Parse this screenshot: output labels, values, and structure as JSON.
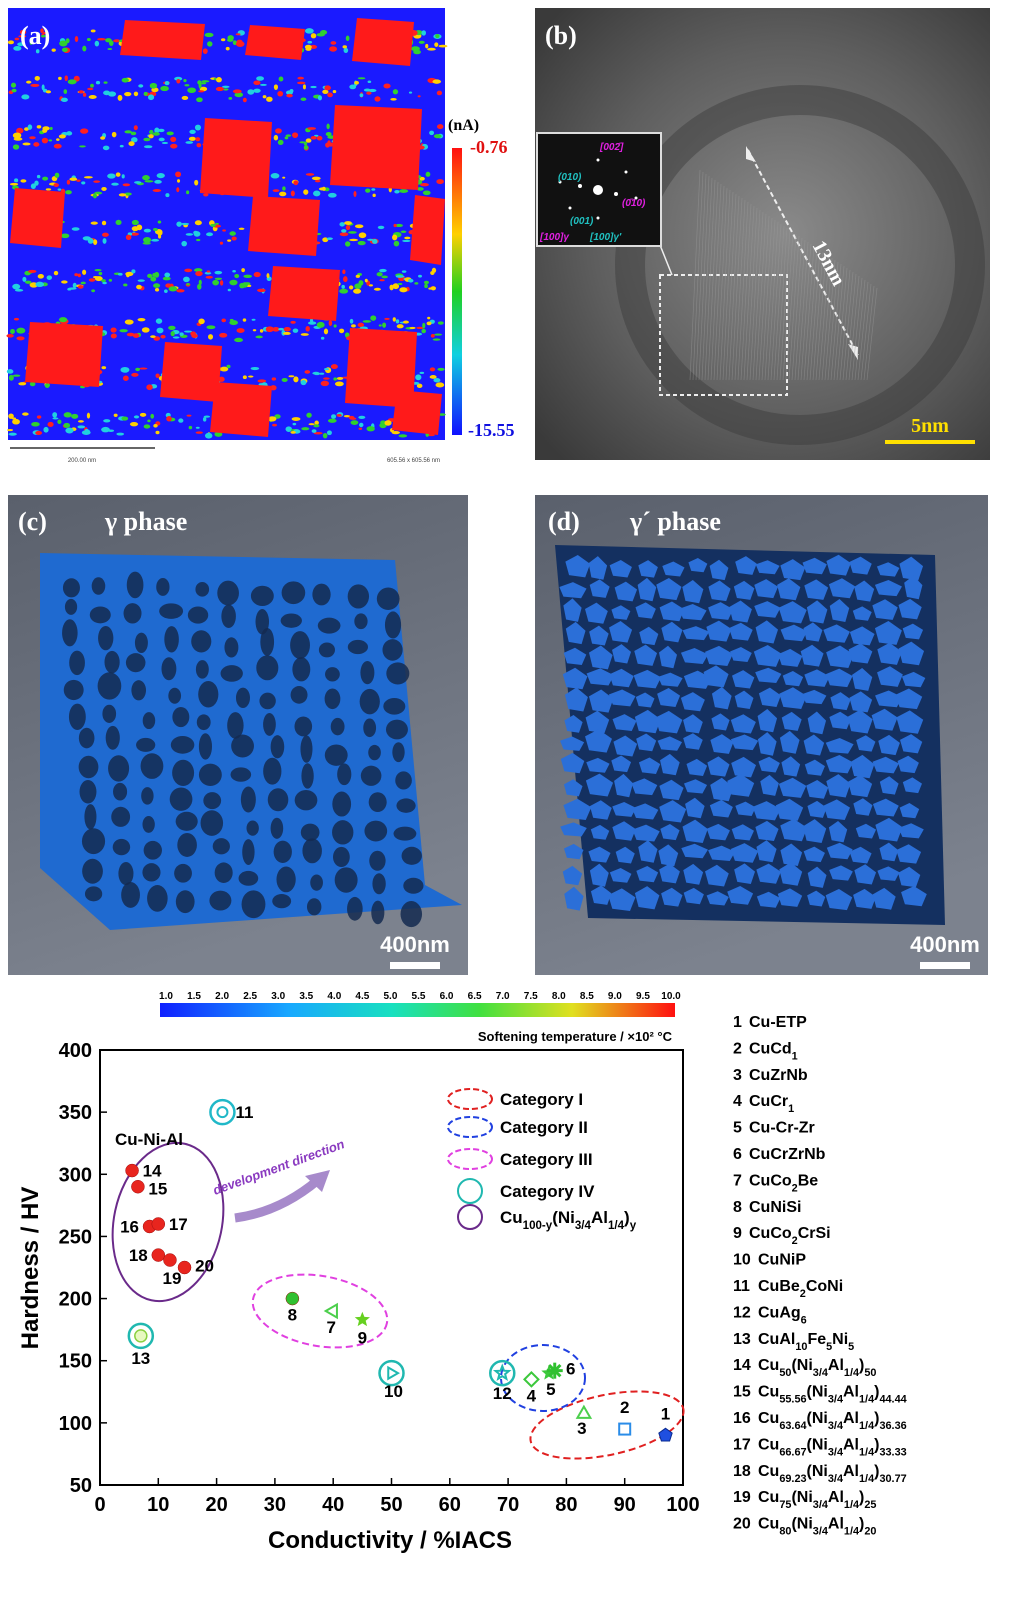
{
  "panel_a": {
    "label": "(a)",
    "unit": "(nA)",
    "colorbar_max": -0.76,
    "colorbar_min": -15.55,
    "scale_text": "200.00 nm",
    "size_text": "605.56 x 605.56 nm"
  },
  "panel_b": {
    "label": "(b)",
    "length": "13nm",
    "scale": "5nm",
    "inset_labels": [
      "[002̄]",
      "(010)",
      "(0̄10)",
      "(001)",
      "[100]γ",
      "[100]γ'"
    ]
  },
  "panel_c": {
    "label": "(c)",
    "phase": "γ phase",
    "scale": "400nm"
  },
  "panel_d": {
    "label": "(d)",
    "phase": "γ´ phase",
    "scale": "400nm"
  },
  "chart_data": {
    "type": "scatter",
    "x_label": "Conductivity / %IACS",
    "y_label": "Hardness / HV",
    "xlim": [
      0,
      100
    ],
    "ylim": [
      50,
      400
    ],
    "xticks": [
      0,
      10,
      20,
      30,
      40,
      50,
      60,
      70,
      80,
      90,
      100
    ],
    "yticks": [
      50,
      100,
      150,
      200,
      250,
      300,
      350,
      400
    ],
    "grid": false,
    "colorbar": {
      "title": "Softening temperature / ×10² °C",
      "labels": [
        "1.0",
        "1.5",
        "2.0",
        "2.5",
        "3.0",
        "3.5",
        "4.0",
        "4.5",
        "5.0",
        "5.5",
        "6.0",
        "6.5",
        "7.0",
        "7.5",
        "8.0",
        "8.5",
        "9.0",
        "9.5",
        "10.0"
      ]
    },
    "points": [
      {
        "label": "1",
        "x": 97,
        "y": 90,
        "marker": "pentagon",
        "color": "#1f4fe0"
      },
      {
        "label": "2",
        "x": 90,
        "y": 95,
        "marker": "square",
        "color": "#2a8ce8"
      },
      {
        "label": "3",
        "x": 83,
        "y": 107,
        "marker": "triangle",
        "color": "#4ccf4c"
      },
      {
        "label": "4",
        "x": 74,
        "y": 135,
        "marker": "diamond",
        "color": "#3cc83c"
      },
      {
        "label": "5",
        "x": 77,
        "y": 140,
        "marker": "star",
        "color": "#3cc83c"
      },
      {
        "label": "6",
        "x": 78,
        "y": 142,
        "marker": "asterisk",
        "color": "#30c030"
      },
      {
        "label": "7",
        "x": 40,
        "y": 190,
        "marker": "triangle-left",
        "color": "#4ccf4c"
      },
      {
        "label": "8",
        "x": 33,
        "y": 200,
        "marker": "circle",
        "color": "#30c030"
      },
      {
        "label": "9",
        "x": 45,
        "y": 183,
        "marker": "star",
        "color": "#66d020"
      },
      {
        "label": "10",
        "x": 50,
        "y": 140,
        "marker": "ring-triangle-right",
        "color": "#20b8b0"
      },
      {
        "label": "11",
        "x": 21,
        "y": 350,
        "marker": "ring-circle",
        "color": "#20b8c8"
      },
      {
        "label": "12",
        "x": 69,
        "y": 140,
        "marker": "ring-star",
        "color": "#20b8b0"
      },
      {
        "label": "13",
        "x": 7,
        "y": 170,
        "marker": "ring-dot",
        "color": "#20b8b0"
      },
      {
        "label": "14",
        "x": 5.5,
        "y": 303,
        "marker": "circle",
        "color": "#e8251e"
      },
      {
        "label": "15",
        "x": 6.5,
        "y": 290,
        "marker": "circle",
        "color": "#e8251e"
      },
      {
        "label": "16",
        "x": 8.5,
        "y": 258,
        "marker": "circle",
        "color": "#e8251e"
      },
      {
        "label": "17",
        "x": 10,
        "y": 260,
        "marker": "circle",
        "color": "#e8251e"
      },
      {
        "label": "18",
        "x": 10,
        "y": 235,
        "marker": "circle",
        "color": "#e8251e"
      },
      {
        "label": "19",
        "x": 12,
        "y": 231,
        "marker": "circle",
        "color": "#e8251e"
      },
      {
        "label": "20",
        "x": 14.5,
        "y": 225,
        "marker": "circle",
        "color": "#e8251e"
      }
    ],
    "legend": [
      {
        "name": [
          "Category I"
        ],
        "color": "#e02020",
        "style": "dashed"
      },
      {
        "name": [
          "Category II"
        ],
        "color": "#2040e0",
        "style": "dashed"
      },
      {
        "name": [
          "Category III"
        ],
        "color": "#e040e0",
        "style": "dashed"
      },
      {
        "name": [
          "Category IV"
        ],
        "color": "#20b8b0",
        "style": "solid"
      },
      {
        "name": [
          "Cu",
          "100-y",
          "(Ni",
          "3/4",
          "Al",
          "1/4",
          ")",
          "y"
        ],
        "color": "#6a2a8a",
        "style": "solid"
      }
    ],
    "annotations": [
      "Cu-Ni-Al",
      "development direction"
    ],
    "alloys": [
      {
        "id": 1,
        "name": [
          "Cu-ETP"
        ]
      },
      {
        "id": 2,
        "name": [
          "CuCd",
          "1"
        ]
      },
      {
        "id": 3,
        "name": [
          "CuZrNb"
        ]
      },
      {
        "id": 4,
        "name": [
          "CuCr",
          "1"
        ]
      },
      {
        "id": 5,
        "name": [
          "Cu-Cr-Zr"
        ]
      },
      {
        "id": 6,
        "name": [
          "CuCrZrNb"
        ]
      },
      {
        "id": 7,
        "name": [
          "CuCo",
          "2",
          "Be"
        ]
      },
      {
        "id": 8,
        "name": [
          "CuNiSi"
        ]
      },
      {
        "id": 9,
        "name": [
          "CuCo",
          "2",
          "CrSi"
        ]
      },
      {
        "id": 10,
        "name": [
          "CuNiP"
        ]
      },
      {
        "id": 11,
        "name": [
          "CuBe",
          "2",
          "CoNi"
        ]
      },
      {
        "id": 12,
        "name": [
          "CuAg",
          "6"
        ]
      },
      {
        "id": 13,
        "name": [
          "CuAl",
          "10",
          "Fe",
          "5",
          "Ni",
          "5"
        ]
      },
      {
        "id": 14,
        "name": [
          "Cu",
          "50",
          "(Ni",
          "3/4",
          "Al",
          "1/4",
          ")",
          "50"
        ]
      },
      {
        "id": 15,
        "name": [
          "Cu",
          "55.56",
          "(Ni",
          "3/4",
          "Al",
          "1/4",
          ")",
          "44.44"
        ]
      },
      {
        "id": 16,
        "name": [
          "Cu",
          "63.64",
          "(Ni",
          "3/4",
          "Al",
          "1/4",
          ")",
          "36.36"
        ]
      },
      {
        "id": 17,
        "name": [
          "Cu",
          "66.67",
          "(Ni",
          "3/4",
          "Al",
          "1/4",
          ")",
          "33.33"
        ]
      },
      {
        "id": 18,
        "name": [
          "Cu",
          "69.23",
          "(Ni",
          "3/4",
          "Al",
          "1/4",
          ")",
          "30.77"
        ]
      },
      {
        "id": 19,
        "name": [
          "Cu",
          "75",
          "(Ni",
          "3/4",
          "Al",
          "1/4",
          ")",
          "25"
        ]
      },
      {
        "id": 20,
        "name": [
          "Cu",
          "80",
          "(Ni",
          "3/4",
          "Al",
          "1/4",
          ")",
          "20"
        ]
      }
    ]
  }
}
